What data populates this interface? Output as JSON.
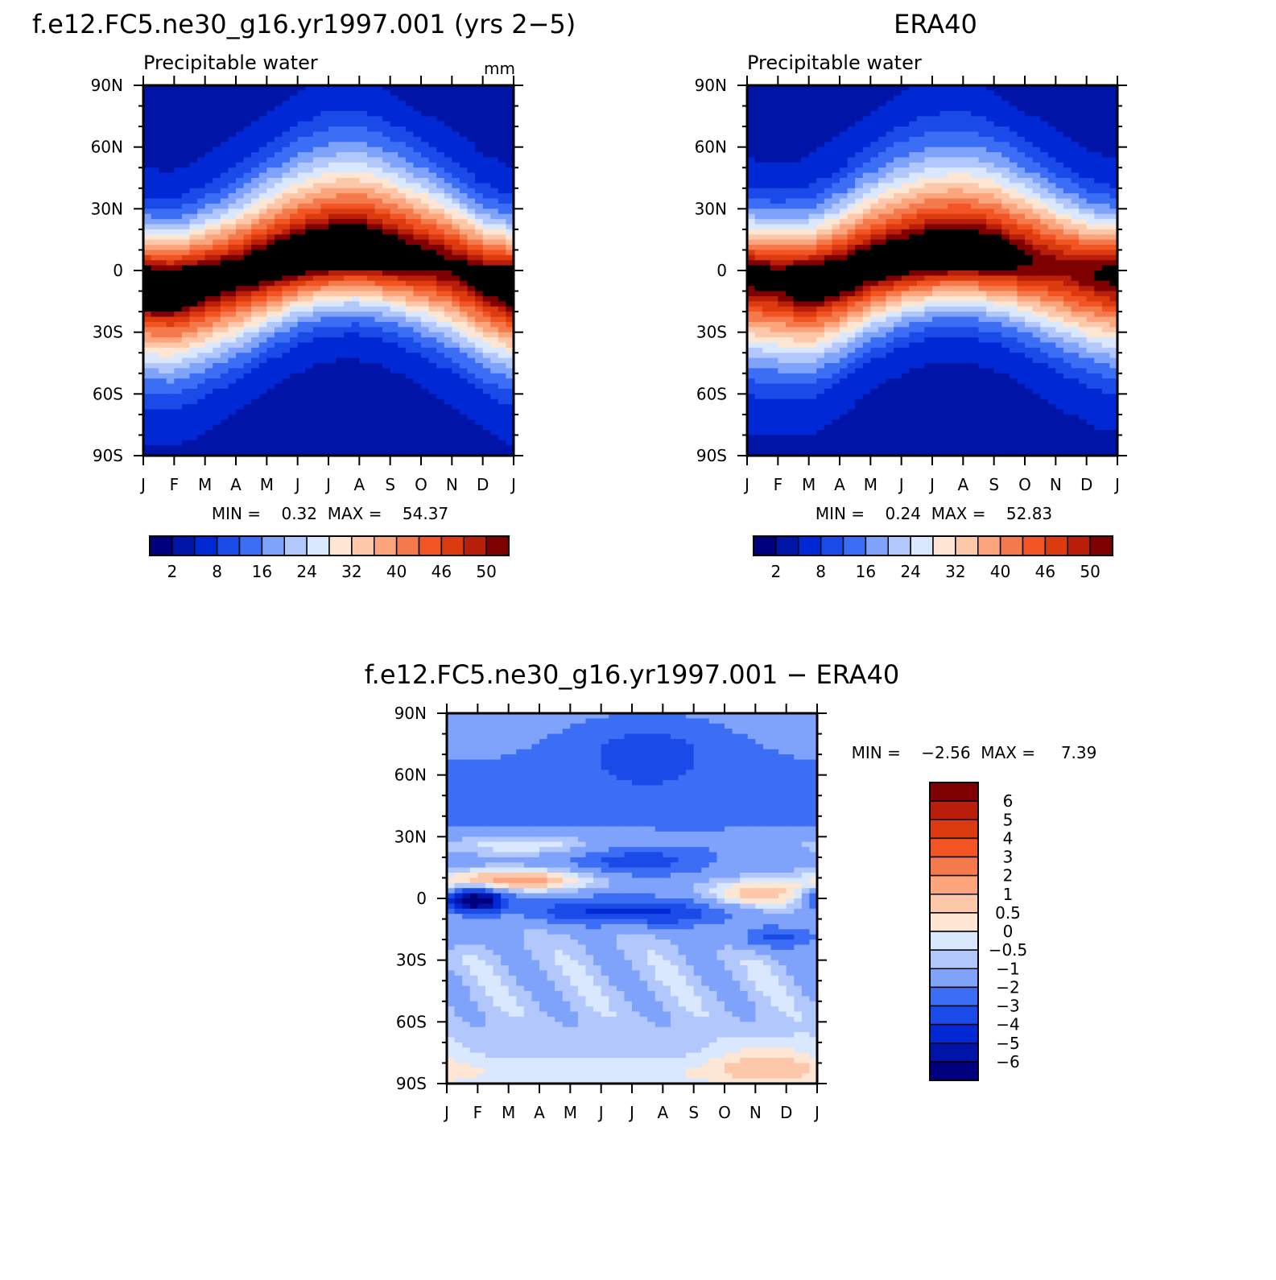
{
  "palettes": {
    "abs_colors": [
      "#00007f",
      "#0015a8",
      "#0028d4",
      "#1a4be8",
      "#3c6ef5",
      "#7fa3fb",
      "#b2c8fd",
      "#d9e8fe",
      "#fee6d4",
      "#fdc7a9",
      "#fca57d",
      "#f47a4c",
      "#f25423",
      "#dc3a0f",
      "#b81e0a",
      "#7f0000"
    ],
    "abs_labels": [
      "2",
      "8",
      "16",
      "24",
      "32",
      "40",
      "46",
      "50"
    ],
    "diff_colors": [
      "#7f0000",
      "#b81e0a",
      "#dc3a0f",
      "#f25423",
      "#f47a4c",
      "#fca57d",
      "#fdc7a9",
      "#fee6d4",
      "#d9e8fe",
      "#b2c8fd",
      "#7fa3fb",
      "#3c6ef5",
      "#1a4be8",
      "#0028d4",
      "#0015a8",
      "#00007f"
    ],
    "diff_labels": [
      "6",
      "5",
      "4",
      "3",
      "2",
      "1",
      "0.5",
      "0",
      "−0.5",
      "−1",
      "−2",
      "−3",
      "−4",
      "−5",
      "−6"
    ]
  },
  "months": [
    "J",
    "F",
    "M",
    "A",
    "M",
    "J",
    "J",
    "A",
    "S",
    "O",
    "N",
    "D",
    "J"
  ],
  "lat_labels": [
    "90N",
    "60N",
    "30N",
    "0",
    "30S",
    "60S",
    "90S"
  ],
  "chart_data": [
    {
      "type": "heatmap",
      "title": "f.e12.FC5.ne30_g16.yr1997.001 (yrs 2−5)",
      "subtitle": "Precipitable water",
      "units": "mm",
      "stats": "MIN =    0.32  MAX =    54.37",
      "min": 0.32,
      "max": 54.37,
      "x": "month Jan..Jan",
      "y": "latitude 90N..90S",
      "itcz": [
        -7,
        -8,
        -5,
        -2,
        2,
        6,
        8,
        9,
        7,
        5,
        2,
        -4
      ],
      "peak": [
        54,
        54,
        52,
        51,
        52,
        53,
        54,
        54,
        52,
        50,
        49,
        50
      ]
    },
    {
      "type": "heatmap",
      "title": "ERA40",
      "subtitle": "Precipitable water",
      "stats": "MIN =    0.24  MAX =    52.83",
      "min": 0.24,
      "max": 52.83,
      "itcz": [
        -2,
        -4,
        -6,
        -3,
        2,
        5,
        7,
        8,
        7,
        5,
        2,
        -1
      ],
      "peak": [
        50,
        50,
        53,
        52,
        52,
        52,
        53,
        53,
        52,
        49,
        47,
        48
      ]
    },
    {
      "type": "heatmap",
      "title": "f.e12.FC5.ne30_g16.yr1997.001 − ERA40",
      "stats": "MIN =    −2.56  MAX =     7.39",
      "min": -2.56,
      "max": 7.39
    }
  ]
}
